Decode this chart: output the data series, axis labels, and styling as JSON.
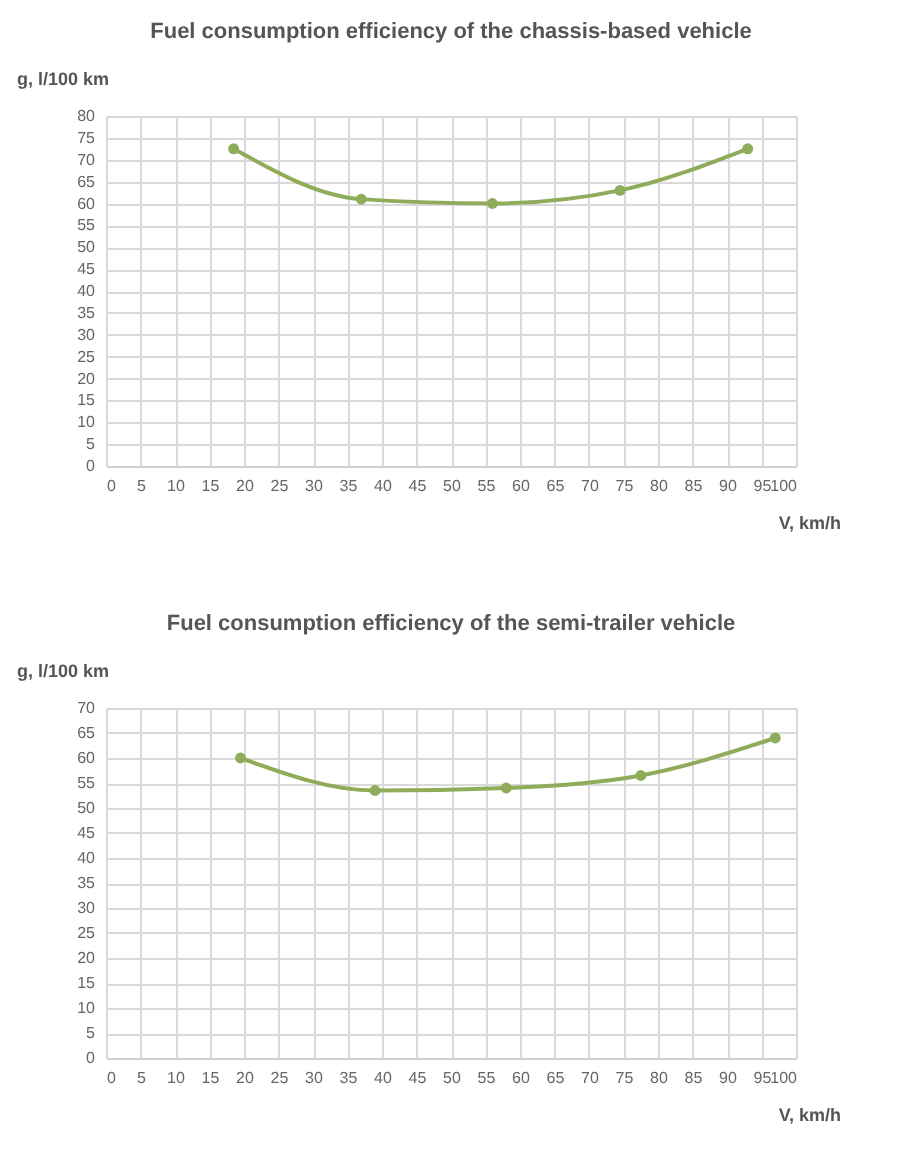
{
  "chart_data": [
    {
      "type": "line",
      "title": "Fuel consumption efficiency of the chassis-based vehicle",
      "xlabel": "V, km/h",
      "ylabel": "g, l/100 km",
      "x": [
        18.5,
        37,
        56,
        74.5,
        93
      ],
      "series": [
        {
          "color": "#8fac5a",
          "values": [
            72.5,
            61,
            60,
            63,
            72.5
          ]
        }
      ],
      "xlim": [
        0,
        100
      ],
      "xticks": [
        0,
        5,
        10,
        15,
        20,
        25,
        30,
        35,
        40,
        45,
        50,
        55,
        60,
        65,
        70,
        75,
        80,
        85,
        90,
        95,
        100
      ],
      "ylim": [
        0,
        80
      ],
      "yticks": [
        0,
        5,
        10,
        15,
        20,
        25,
        30,
        35,
        40,
        45,
        50,
        55,
        60,
        65,
        70,
        75,
        80
      ],
      "grid": true,
      "marker": "circle",
      "line_style": "solid"
    },
    {
      "type": "line",
      "title": "Fuel consumption efficiency of the semi-trailer vehicle",
      "xlabel": "V, km/h",
      "ylabel": "g, l/100 km",
      "x": [
        19.5,
        39,
        58,
        77.5,
        97
      ],
      "series": [
        {
          "color": "#8fac5a",
          "values": [
            60,
            53.5,
            54,
            56.5,
            64
          ]
        }
      ],
      "xlim": [
        0,
        100
      ],
      "xticks": [
        0,
        5,
        10,
        15,
        20,
        25,
        30,
        35,
        40,
        45,
        50,
        55,
        60,
        65,
        70,
        75,
        80,
        85,
        90,
        95,
        100
      ],
      "ylim": [
        0,
        70
      ],
      "yticks": [
        0,
        5,
        10,
        15,
        20,
        25,
        30,
        35,
        40,
        45,
        50,
        55,
        60,
        65,
        70
      ],
      "grid": true,
      "marker": "circle",
      "line_style": "solid"
    }
  ]
}
